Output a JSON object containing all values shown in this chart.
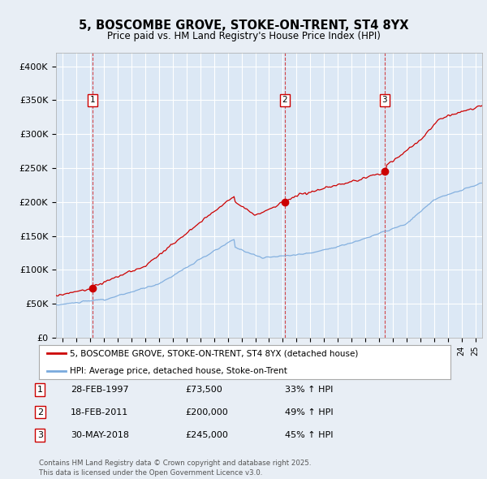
{
  "title": "5, BOSCOMBE GROVE, STOKE-ON-TRENT, ST4 8YX",
  "subtitle": "Price paid vs. HM Land Registry's House Price Index (HPI)",
  "xlim_start": 1994.5,
  "xlim_end": 2025.5,
  "ylim_min": 0,
  "ylim_max": 420000,
  "yticks": [
    0,
    50000,
    100000,
    150000,
    200000,
    250000,
    300000,
    350000,
    400000
  ],
  "ytick_labels": [
    "£0",
    "£50K",
    "£100K",
    "£150K",
    "£200K",
    "£250K",
    "£300K",
    "£350K",
    "£400K"
  ],
  "background_color": "#e8eef5",
  "plot_bg_color": "#dce8f5",
  "grid_color": "#ffffff",
  "sale_color": "#cc0000",
  "hpi_color": "#7aaadd",
  "transactions": [
    {
      "date": 1997.15,
      "price": 73500,
      "label": "1"
    },
    {
      "date": 2011.13,
      "price": 200000,
      "label": "2"
    },
    {
      "date": 2018.41,
      "price": 245000,
      "label": "3"
    }
  ],
  "legend_entries": [
    "5, BOSCOMBE GROVE, STOKE-ON-TRENT, ST4 8YX (detached house)",
    "HPI: Average price, detached house, Stoke-on-Trent"
  ],
  "table_rows": [
    {
      "num": "1",
      "date": "28-FEB-1997",
      "price": "£73,500",
      "change": "33% ↑ HPI"
    },
    {
      "num": "2",
      "date": "18-FEB-2011",
      "price": "£200,000",
      "change": "49% ↑ HPI"
    },
    {
      "num": "3",
      "date": "30-MAY-2018",
      "price": "£245,000",
      "change": "45% ↑ HPI"
    }
  ],
  "footnote": "Contains HM Land Registry data © Crown copyright and database right 2025.\nThis data is licensed under the Open Government Licence v3.0."
}
